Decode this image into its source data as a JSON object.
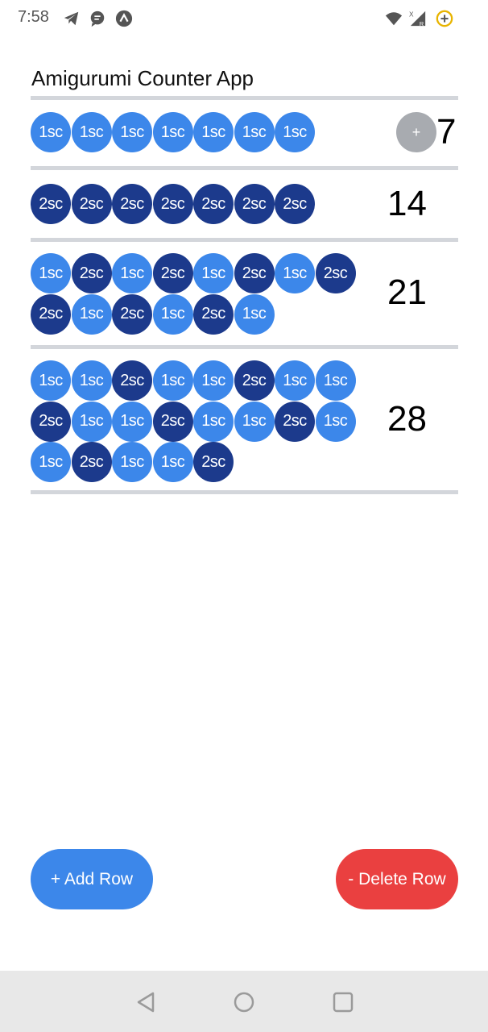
{
  "status_bar": {
    "time": "7:58",
    "left_icons": [
      "telegram-icon",
      "chat-icon",
      "app-icon"
    ],
    "right_icons": [
      "wifi-icon",
      "signal-icon",
      "battery-saver-icon"
    ]
  },
  "app": {
    "title": "Amigurumi Counter App"
  },
  "rows": [
    {
      "count": "7",
      "show_plus": true,
      "stitches": [
        "1sc",
        "1sc",
        "1sc",
        "1sc",
        "1sc",
        "1sc",
        "1sc"
      ]
    },
    {
      "count": "14",
      "show_plus": false,
      "stitches": [
        "2sc",
        "2sc",
        "2sc",
        "2sc",
        "2sc",
        "2sc",
        "2sc"
      ]
    },
    {
      "count": "21",
      "show_plus": false,
      "stitches": [
        "1sc",
        "2sc",
        "1sc",
        "2sc",
        "1sc",
        "2sc",
        "1sc",
        "2sc",
        "2sc",
        "1sc",
        "2sc",
        "1sc",
        "2sc",
        "1sc"
      ]
    },
    {
      "count": "28",
      "show_plus": false,
      "stitches": [
        "1sc",
        "1sc",
        "2sc",
        "1sc",
        "1sc",
        "2sc",
        "1sc",
        "1sc",
        "2sc",
        "1sc",
        "1sc",
        "2sc",
        "1sc",
        "1sc",
        "2sc",
        "1sc",
        "1sc",
        "2sc",
        "1sc",
        "1sc",
        "2sc"
      ]
    }
  ],
  "plus_label": "+",
  "buttons": {
    "add_row": "+ Add Row",
    "delete_row": "- Delete Row"
  },
  "colors": {
    "sc1": "#3c87ea",
    "sc2": "#1c3a8c",
    "add": "#3c87ea",
    "delete": "#ea4040",
    "divider": "#d3d6db"
  },
  "nav": [
    "back-icon",
    "home-icon",
    "recents-icon"
  ]
}
